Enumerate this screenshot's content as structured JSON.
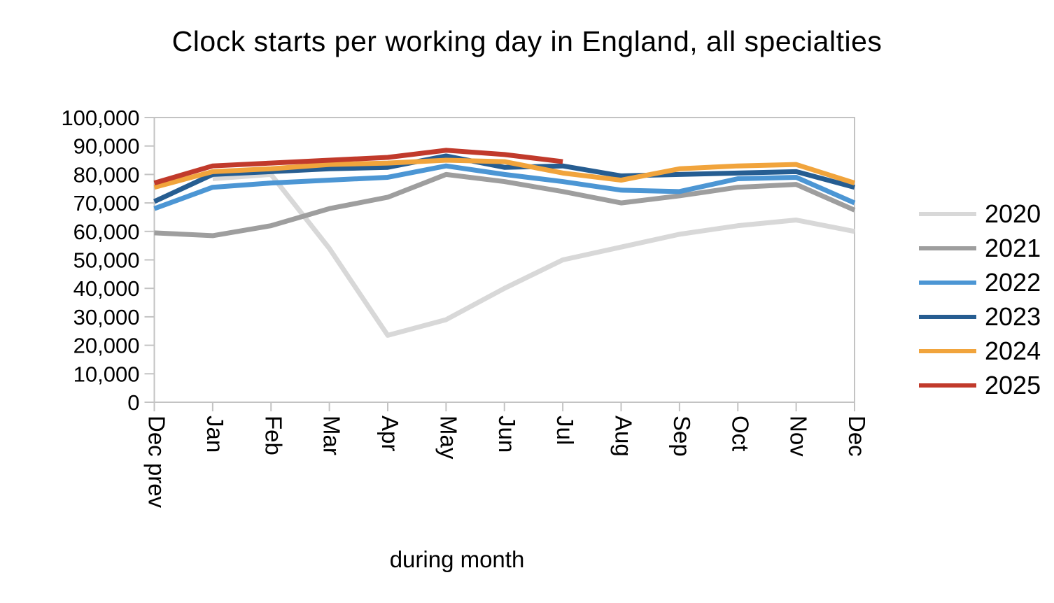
{
  "title": "Clock starts per working day in England, all specialties",
  "chart_data": {
    "type": "line",
    "title": "Clock starts per working day in England, all specialties",
    "xlabel": "during month",
    "ylabel": "",
    "ylim": [
      0,
      100000
    ],
    "grid": false,
    "legend_position": "right",
    "axis_color": "#c3c3c3",
    "categories": [
      "Dec prev",
      "Jan",
      "Feb",
      "Mar",
      "Apr",
      "May",
      "Jun",
      "Jul",
      "Aug",
      "Sep",
      "Oct",
      "Nov",
      "Dec"
    ],
    "y_ticks": [
      {
        "value": 0,
        "label": "0"
      },
      {
        "value": 10000,
        "label": "10,000"
      },
      {
        "value": 20000,
        "label": "20,000"
      },
      {
        "value": 30000,
        "label": "30,000"
      },
      {
        "value": 40000,
        "label": "40,000"
      },
      {
        "value": 50000,
        "label": "50,000"
      },
      {
        "value": 60000,
        "label": "60,000"
      },
      {
        "value": 70000,
        "label": "70,000"
      },
      {
        "value": 80000,
        "label": "80,000"
      },
      {
        "value": 90000,
        "label": "90,000"
      },
      {
        "value": 100000,
        "label": "100,000"
      }
    ],
    "series": [
      {
        "name": "2020",
        "color": "#d8d8d8",
        "values": [
          null,
          78500,
          80000,
          54000,
          23500,
          29000,
          40000,
          50000,
          54500,
          59000,
          62000,
          64000,
          60000
        ]
      },
      {
        "name": "2021",
        "color": "#9e9e9e",
        "values": [
          59500,
          58500,
          62000,
          68000,
          72000,
          80000,
          77500,
          74000,
          70000,
          72500,
          75500,
          76500,
          67500
        ]
      },
      {
        "name": "2022",
        "color": "#4c96d4",
        "values": [
          68000,
          75500,
          77000,
          78000,
          79000,
          83000,
          80000,
          77500,
          74500,
          74000,
          78500,
          79000,
          70000
        ]
      },
      {
        "name": "2023",
        "color": "#265d91",
        "values": [
          70500,
          80000,
          81000,
          82000,
          82500,
          86500,
          82500,
          83000,
          79500,
          80000,
          80500,
          81000,
          75500
        ]
      },
      {
        "name": "2024",
        "color": "#f1a43c",
        "values": [
          75500,
          81000,
          82000,
          83500,
          84000,
          85000,
          84500,
          80500,
          78000,
          82000,
          83000,
          83500,
          77000
        ]
      },
      {
        "name": "2025",
        "color": "#c13a2b",
        "values": [
          77000,
          83000,
          84000,
          85000,
          86000,
          88500,
          87000,
          84500,
          null,
          null,
          null,
          null,
          null
        ]
      }
    ]
  }
}
